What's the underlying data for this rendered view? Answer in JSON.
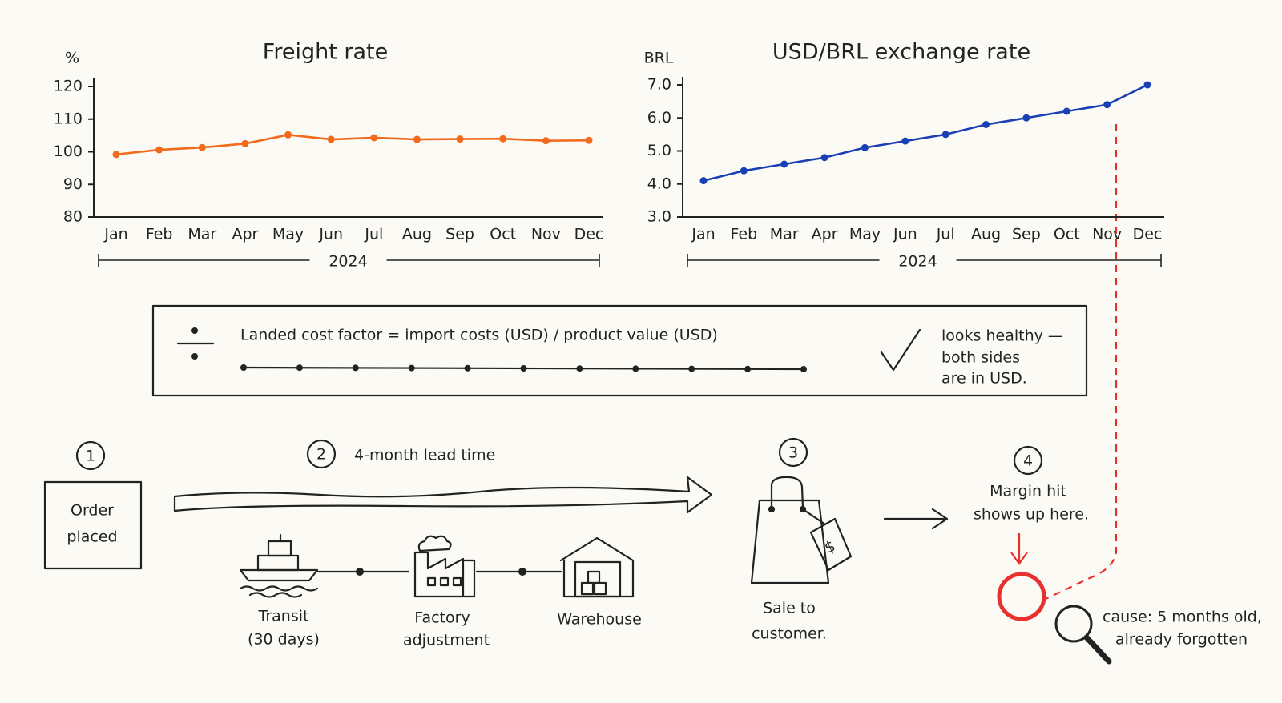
{
  "chart_data": [
    {
      "type": "line",
      "title": "Freight rate",
      "y_label": "%",
      "x_label": "2024",
      "color": "#f26a1b",
      "categories": [
        "Jan",
        "Feb",
        "Mar",
        "Apr",
        "May",
        "Jun",
        "Jul",
        "Aug",
        "Sep",
        "Oct",
        "Nov",
        "Dec"
      ],
      "values": [
        99.2,
        100.6,
        101.3,
        102.5,
        105.2,
        103.8,
        104.3,
        103.8,
        103.9,
        104,
        103.4,
        103.5
      ],
      "ylim": [
        80,
        120
      ],
      "yticks": [
        80,
        90,
        100,
        110,
        120
      ]
    },
    {
      "type": "line",
      "title": "USD/BRL exchange rate",
      "y_label": "BRL",
      "x_label": "2024",
      "color": "#1a3fb5",
      "categories": [
        "Jan",
        "Feb",
        "Mar",
        "Apr",
        "May",
        "Jun",
        "Jul",
        "Aug",
        "Sep",
        "Oct",
        "Nov",
        "Dec"
      ],
      "values": [
        4.1,
        4.4,
        4.6,
        4.8,
        5.1,
        5.3,
        5.5,
        5.8,
        6.0,
        6.2,
        6.4,
        7.0
      ],
      "ylim": [
        3,
        7
      ],
      "yticks": [
        {
          "value": 3,
          "label": "3.0"
        },
        {
          "value": 4,
          "label": "4.0"
        },
        {
          "value": 5,
          "label": "5.0"
        },
        {
          "value": 6,
          "label": "6.0"
        },
        {
          "value": 7,
          "label": "7.0"
        }
      ]
    }
  ],
  "formula": {
    "text": "Landed cost factor  =  import costs (USD) / product value (USD)",
    "note": [
      "looks healthy —",
      "both sides",
      "are in USD."
    ]
  },
  "steps": [
    {
      "number": "1",
      "label": [
        "Order",
        "placed"
      ]
    },
    {
      "number": "2",
      "label": [
        "4-month lead time"
      ]
    },
    {
      "number": "3",
      "label": [
        "Sale to",
        "customer."
      ]
    },
    {
      "number": "4",
      "label": [
        "Margin hit",
        "shows up here."
      ]
    }
  ],
  "stages": [
    {
      "label": [
        "Transit",
        "(30 days)"
      ]
    },
    {
      "label": [
        "Factory",
        "adjustment"
      ]
    },
    {
      "label": [
        "Warehouse"
      ]
    }
  ],
  "cause": [
    "cause: 5 months old,",
    "already forgotten"
  ]
}
